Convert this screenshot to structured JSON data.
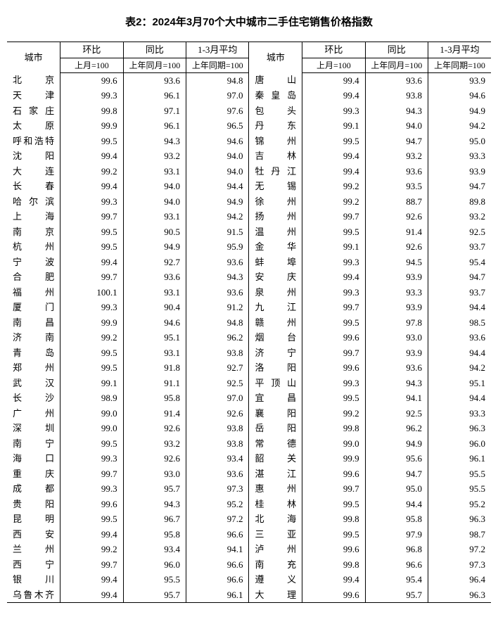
{
  "title": "表2：2024年3月70个大中城市二手住宅销售价格指数",
  "headers": {
    "city": "城市",
    "mom": "环比",
    "yoy": "同比",
    "avg": "1-3月平均",
    "mom_sub": "上月=100",
    "yoy_sub": "上年同月=100",
    "avg_sub": "上年同期=100"
  },
  "rows": [
    {
      "lc": "北京",
      "l1": "99.6",
      "l2": "93.6",
      "l3": "94.8",
      "rc": "唐山",
      "r1": "99.4",
      "r2": "93.6",
      "r3": "93.9"
    },
    {
      "lc": "天津",
      "l1": "99.3",
      "l2": "96.1",
      "l3": "97.0",
      "rc": "秦皇岛",
      "r1": "99.4",
      "r2": "93.8",
      "r3": "94.6"
    },
    {
      "lc": "石家庄",
      "l1": "99.8",
      "l2": "97.1",
      "l3": "97.6",
      "rc": "包头",
      "r1": "99.3",
      "r2": "94.3",
      "r3": "94.9"
    },
    {
      "lc": "太原",
      "l1": "99.9",
      "l2": "96.1",
      "l3": "96.5",
      "rc": "丹东",
      "r1": "99.1",
      "r2": "94.0",
      "r3": "94.2"
    },
    {
      "lc": "呼和浩特",
      "l1": "99.5",
      "l2": "94.3",
      "l3": "94.6",
      "rc": "锦州",
      "r1": "99.5",
      "r2": "94.7",
      "r3": "95.0"
    },
    {
      "lc": "沈阳",
      "l1": "99.4",
      "l2": "93.2",
      "l3": "94.0",
      "rc": "吉林",
      "r1": "99.4",
      "r2": "93.2",
      "r3": "93.3"
    },
    {
      "lc": "大连",
      "l1": "99.2",
      "l2": "93.1",
      "l3": "94.0",
      "rc": "牡丹江",
      "r1": "99.4",
      "r2": "93.6",
      "r3": "93.9"
    },
    {
      "lc": "长春",
      "l1": "99.4",
      "l2": "94.0",
      "l3": "94.4",
      "rc": "无锡",
      "r1": "99.2",
      "r2": "93.5",
      "r3": "94.7"
    },
    {
      "lc": "哈尔滨",
      "l1": "99.3",
      "l2": "94.0",
      "l3": "94.9",
      "rc": "徐州",
      "r1": "99.2",
      "r2": "88.7",
      "r3": "89.8"
    },
    {
      "lc": "上海",
      "l1": "99.7",
      "l2": "93.1",
      "l3": "94.2",
      "rc": "扬州",
      "r1": "99.7",
      "r2": "92.6",
      "r3": "93.2"
    },
    {
      "lc": "南京",
      "l1": "99.5",
      "l2": "90.5",
      "l3": "91.5",
      "rc": "温州",
      "r1": "99.5",
      "r2": "91.4",
      "r3": "92.5"
    },
    {
      "lc": "杭州",
      "l1": "99.5",
      "l2": "94.9",
      "l3": "95.9",
      "rc": "金华",
      "r1": "99.1",
      "r2": "92.6",
      "r3": "93.7"
    },
    {
      "lc": "宁波",
      "l1": "99.4",
      "l2": "92.7",
      "l3": "93.6",
      "rc": "蚌埠",
      "r1": "99.3",
      "r2": "94.5",
      "r3": "95.4"
    },
    {
      "lc": "合肥",
      "l1": "99.7",
      "l2": "93.6",
      "l3": "94.3",
      "rc": "安庆",
      "r1": "99.4",
      "r2": "93.9",
      "r3": "94.7"
    },
    {
      "lc": "福州",
      "l1": "100.1",
      "l2": "93.1",
      "l3": "93.6",
      "rc": "泉州",
      "r1": "99.3",
      "r2": "93.3",
      "r3": "93.7"
    },
    {
      "lc": "厦门",
      "l1": "99.3",
      "l2": "90.4",
      "l3": "91.2",
      "rc": "九江",
      "r1": "99.7",
      "r2": "93.9",
      "r3": "94.4"
    },
    {
      "lc": "南昌",
      "l1": "99.9",
      "l2": "94.6",
      "l3": "94.8",
      "rc": "赣州",
      "r1": "99.5",
      "r2": "97.8",
      "r3": "98.5"
    },
    {
      "lc": "济南",
      "l1": "99.2",
      "l2": "95.1",
      "l3": "96.2",
      "rc": "烟台",
      "r1": "99.6",
      "r2": "93.0",
      "r3": "93.6"
    },
    {
      "lc": "青岛",
      "l1": "99.5",
      "l2": "93.1",
      "l3": "93.8",
      "rc": "济宁",
      "r1": "99.7",
      "r2": "93.9",
      "r3": "94.4"
    },
    {
      "lc": "郑州",
      "l1": "99.5",
      "l2": "91.8",
      "l3": "92.7",
      "rc": "洛阳",
      "r1": "99.6",
      "r2": "93.6",
      "r3": "94.2"
    },
    {
      "lc": "武汉",
      "l1": "99.1",
      "l2": "91.1",
      "l3": "92.5",
      "rc": "平顶山",
      "r1": "99.3",
      "r2": "94.3",
      "r3": "95.1"
    },
    {
      "lc": "长沙",
      "l1": "98.9",
      "l2": "95.8",
      "l3": "97.0",
      "rc": "宜昌",
      "r1": "99.5",
      "r2": "94.1",
      "r3": "94.4"
    },
    {
      "lc": "广州",
      "l1": "99.0",
      "l2": "91.4",
      "l3": "92.6",
      "rc": "襄阳",
      "r1": "99.2",
      "r2": "92.5",
      "r3": "93.3"
    },
    {
      "lc": "深圳",
      "l1": "99.0",
      "l2": "92.6",
      "l3": "93.8",
      "rc": "岳阳",
      "r1": "99.8",
      "r2": "96.2",
      "r3": "96.3"
    },
    {
      "lc": "南宁",
      "l1": "99.5",
      "l2": "93.2",
      "l3": "93.8",
      "rc": "常德",
      "r1": "99.0",
      "r2": "94.9",
      "r3": "96.0"
    },
    {
      "lc": "海口",
      "l1": "99.3",
      "l2": "92.6",
      "l3": "93.4",
      "rc": "韶关",
      "r1": "99.9",
      "r2": "95.6",
      "r3": "96.1"
    },
    {
      "lc": "重庆",
      "l1": "99.7",
      "l2": "93.0",
      "l3": "93.6",
      "rc": "湛江",
      "r1": "99.6",
      "r2": "94.7",
      "r3": "95.5"
    },
    {
      "lc": "成都",
      "l1": "99.3",
      "l2": "95.7",
      "l3": "97.3",
      "rc": "惠州",
      "r1": "99.7",
      "r2": "95.0",
      "r3": "95.5"
    },
    {
      "lc": "贵阳",
      "l1": "99.6",
      "l2": "94.3",
      "l3": "95.2",
      "rc": "桂林",
      "r1": "99.5",
      "r2": "94.4",
      "r3": "95.2"
    },
    {
      "lc": "昆明",
      "l1": "99.5",
      "l2": "96.7",
      "l3": "97.2",
      "rc": "北海",
      "r1": "99.8",
      "r2": "95.8",
      "r3": "96.3"
    },
    {
      "lc": "西安",
      "l1": "99.4",
      "l2": "95.8",
      "l3": "96.6",
      "rc": "三亚",
      "r1": "99.5",
      "r2": "97.9",
      "r3": "98.7"
    },
    {
      "lc": "兰州",
      "l1": "99.2",
      "l2": "93.4",
      "l3": "94.1",
      "rc": "泸州",
      "r1": "99.6",
      "r2": "96.8",
      "r3": "97.2"
    },
    {
      "lc": "西宁",
      "l1": "99.7",
      "l2": "96.0",
      "l3": "96.6",
      "rc": "南充",
      "r1": "99.8",
      "r2": "96.6",
      "r3": "97.3"
    },
    {
      "lc": "银川",
      "l1": "99.4",
      "l2": "95.5",
      "l3": "96.6",
      "rc": "遵义",
      "r1": "99.4",
      "r2": "95.4",
      "r3": "96.4"
    },
    {
      "lc": "乌鲁木齐",
      "l1": "99.4",
      "l2": "95.7",
      "l3": "96.1",
      "rc": "大理",
      "r1": "99.6",
      "r2": "95.7",
      "r3": "96.3"
    }
  ]
}
